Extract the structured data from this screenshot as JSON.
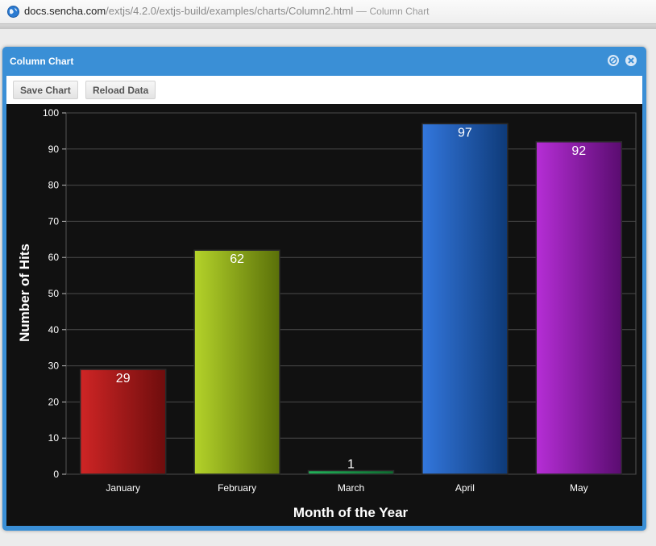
{
  "browser": {
    "url_host": "docs.sencha.com",
    "url_path": "/extjs/4.2.0/extjs-build/examples/charts/Column2.html",
    "separator": " — ",
    "page_title": "Column Chart",
    "icon": "globe-icon"
  },
  "window": {
    "title": "Column Chart",
    "tools": [
      "minimize-icon",
      "close-icon"
    ],
    "accent": "#3a8fd6"
  },
  "toolbar": {
    "save_label": "Save Chart",
    "reload_label": "Reload Data"
  },
  "chart_data": {
    "type": "bar",
    "categories": [
      "January",
      "February",
      "March",
      "April",
      "May"
    ],
    "values": [
      29,
      62,
      1,
      97,
      92
    ],
    "xlabel": "Month of the Year",
    "ylabel": "Number of Hits",
    "ylim": [
      0,
      100
    ],
    "yticks": [
      0,
      10,
      20,
      30,
      40,
      50,
      60,
      70,
      80,
      90,
      100
    ],
    "grid": true,
    "background": "#111111",
    "colors": [
      [
        "#cf2525",
        "#6e0d0d"
      ],
      [
        "#b4d32a",
        "#5a7009"
      ],
      [
        "#22b35a",
        "#0e6b30"
      ],
      [
        "#3377dd",
        "#0e3a78"
      ],
      [
        "#b62ed6",
        "#5a0c70"
      ]
    ]
  }
}
